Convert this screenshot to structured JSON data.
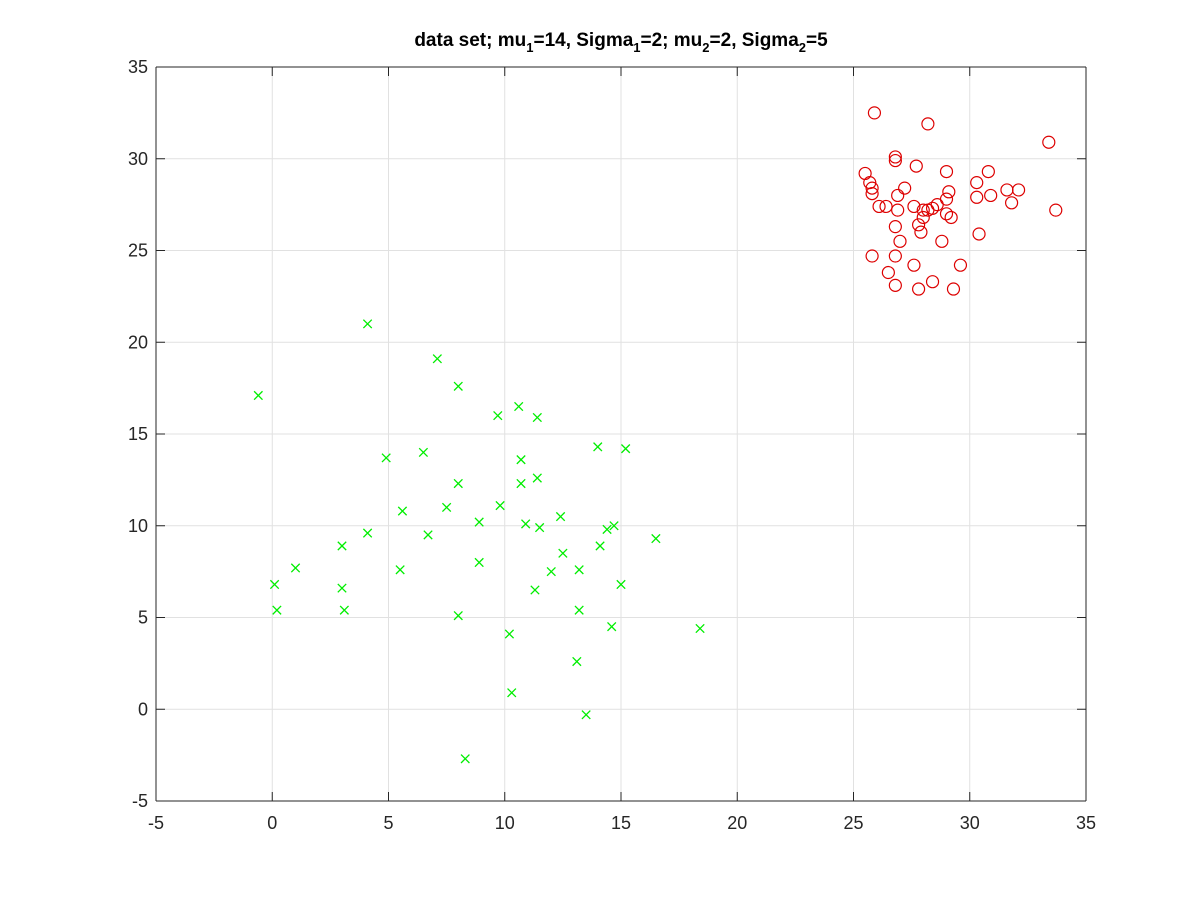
{
  "chart_data": {
    "type": "scatter",
    "title": "data set; mu_1=14, Sigma_1=2; mu_2=2, Sigma_2=5",
    "title_parts": [
      "data set; mu",
      "1",
      "=14, Sigma",
      "1",
      "=2; mu",
      "2",
      "=2, Sigma",
      "2",
      "=5"
    ],
    "xlabel": "",
    "ylabel": "",
    "xlim": [
      -5,
      35
    ],
    "ylim": [
      -5,
      35
    ],
    "xticks": [
      -5,
      0,
      5,
      10,
      15,
      20,
      25,
      30,
      35
    ],
    "yticks": [
      -5,
      0,
      5,
      10,
      15,
      20,
      25,
      30,
      35
    ],
    "grid": true,
    "series": [
      {
        "marker": "x",
        "color": "#00ee00",
        "points": [
          [
            -0.6,
            17.1
          ],
          [
            4.1,
            21.0
          ],
          [
            7.1,
            19.1
          ],
          [
            8.0,
            17.6
          ],
          [
            9.7,
            16.0
          ],
          [
            10.6,
            16.5
          ],
          [
            11.4,
            15.9
          ],
          [
            14.0,
            14.3
          ],
          [
            15.2,
            14.2
          ],
          [
            4.9,
            13.7
          ],
          [
            6.5,
            14.0
          ],
          [
            10.7,
            13.6
          ],
          [
            11.4,
            12.6
          ],
          [
            8.0,
            12.3
          ],
          [
            10.7,
            12.3
          ],
          [
            9.8,
            11.1
          ],
          [
            7.5,
            11.0
          ],
          [
            5.6,
            10.8
          ],
          [
            12.4,
            10.5
          ],
          [
            8.9,
            10.2
          ],
          [
            10.9,
            10.1
          ],
          [
            11.5,
            9.9
          ],
          [
            14.4,
            9.8
          ],
          [
            14.7,
            10.0
          ],
          [
            4.1,
            9.6
          ],
          [
            6.7,
            9.5
          ],
          [
            16.5,
            9.3
          ],
          [
            3.0,
            8.9
          ],
          [
            14.1,
            8.9
          ],
          [
            12.5,
            8.5
          ],
          [
            8.9,
            8.0
          ],
          [
            1.0,
            7.7
          ],
          [
            5.5,
            7.6
          ],
          [
            13.2,
            7.6
          ],
          [
            12.0,
            7.5
          ],
          [
            0.1,
            6.8
          ],
          [
            3.0,
            6.6
          ],
          [
            15.0,
            6.8
          ],
          [
            11.3,
            6.5
          ],
          [
            0.2,
            5.4
          ],
          [
            3.1,
            5.4
          ],
          [
            13.2,
            5.4
          ],
          [
            8.0,
            5.1
          ],
          [
            14.6,
            4.5
          ],
          [
            18.4,
            4.4
          ],
          [
            10.2,
            4.1
          ],
          [
            13.1,
            2.6
          ],
          [
            10.3,
            0.9
          ],
          [
            13.5,
            -0.3
          ],
          [
            8.3,
            -2.7
          ]
        ]
      },
      {
        "marker": "o",
        "color": "#dd0000",
        "points": [
          [
            25.9,
            32.5
          ],
          [
            28.2,
            31.9
          ],
          [
            33.4,
            30.9
          ],
          [
            26.8,
            30.1
          ],
          [
            26.8,
            29.9
          ],
          [
            27.7,
            29.6
          ],
          [
            25.5,
            29.2
          ],
          [
            29.0,
            29.3
          ],
          [
            30.8,
            29.3
          ],
          [
            25.7,
            28.7
          ],
          [
            25.8,
            28.4
          ],
          [
            27.2,
            28.4
          ],
          [
            30.3,
            28.7
          ],
          [
            25.8,
            28.1
          ],
          [
            26.9,
            28.0
          ],
          [
            29.1,
            28.2
          ],
          [
            31.6,
            28.3
          ],
          [
            32.1,
            28.3
          ],
          [
            29.0,
            27.8
          ],
          [
            30.3,
            27.9
          ],
          [
            30.9,
            28.0
          ],
          [
            26.1,
            27.4
          ],
          [
            26.4,
            27.4
          ],
          [
            28.6,
            27.5
          ],
          [
            31.8,
            27.6
          ],
          [
            26.9,
            27.2
          ],
          [
            27.6,
            27.4
          ],
          [
            28.0,
            27.2
          ],
          [
            28.4,
            27.3
          ],
          [
            28.2,
            27.2
          ],
          [
            29.0,
            27.0
          ],
          [
            33.7,
            27.2
          ],
          [
            28.0,
            26.8
          ],
          [
            29.2,
            26.8
          ],
          [
            27.8,
            26.4
          ],
          [
            26.8,
            26.3
          ],
          [
            27.9,
            26.0
          ],
          [
            30.4,
            25.9
          ],
          [
            27.0,
            25.5
          ],
          [
            28.8,
            25.5
          ],
          [
            25.8,
            24.7
          ],
          [
            26.8,
            24.7
          ],
          [
            27.6,
            24.2
          ],
          [
            29.6,
            24.2
          ],
          [
            26.5,
            23.8
          ],
          [
            28.4,
            23.3
          ],
          [
            26.8,
            23.1
          ],
          [
            27.8,
            22.9
          ],
          [
            29.3,
            22.9
          ]
        ]
      }
    ]
  }
}
